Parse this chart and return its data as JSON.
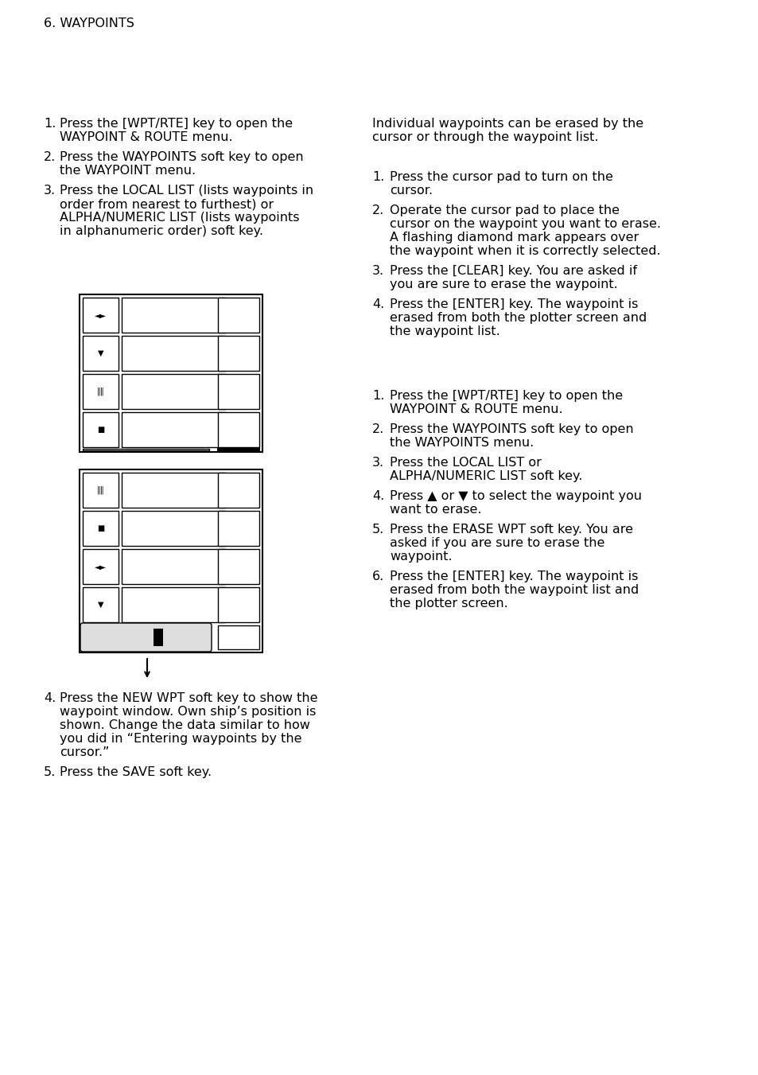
{
  "bg_color": "#ffffff",
  "text_color": "#000000",
  "header": "6. WAYPOINTS",
  "left_list1": [
    [
      "1.",
      "Press the [WPT/RTE] key to open the\nWAYPOINT & ROUTE menu."
    ],
    [
      "2.",
      "Press the WAYPOINTS soft key to open\nthe WAYPOINT menu."
    ],
    [
      "3.",
      "Press the LOCAL LIST (lists waypoints in\norder from nearest to furthest) or\nALPHA/NUMERIC LIST (lists waypoints\nin alphanumeric order) soft key."
    ]
  ],
  "right_intro": "Individual waypoints can be erased by the\ncursor or through the waypoint list.",
  "right_list1": [
    [
      "1.",
      "Press the cursor pad to turn on the\ncursor."
    ],
    [
      "2.",
      "Operate the cursor pad to place the\ncursor on the waypoint you want to erase.\nA flashing diamond mark appears over\nthe waypoint when it is correctly selected."
    ],
    [
      "3.",
      "Press the [CLEAR] key. You are asked if\nyou are sure to erase the waypoint."
    ],
    [
      "4.",
      "Press the [ENTER] key. The waypoint is\nerased from both the plotter screen and\nthe waypoint list."
    ]
  ],
  "right_list2": [
    [
      "1.",
      "Press the [WPT/RTE] key to open the\nWAYPOINT & ROUTE menu."
    ],
    [
      "2.",
      "Press the WAYPOINTS soft key to open\nthe WAYPOINTS menu."
    ],
    [
      "3.",
      "Press the LOCAL LIST or\nALPHA/NUMERIC LIST soft key."
    ],
    [
      "4.",
      "Press ▲ or ▼ to select the waypoint you\nwant to erase."
    ],
    [
      "5.",
      "Press the ERASE WPT soft key. You are\nasked if you are sure to erase the\nwaypoint."
    ],
    [
      "6.",
      "Press the [ENTER] key. The waypoint is\nerased from both the waypoint list and\nthe plotter screen."
    ]
  ],
  "left_list2": [
    [
      "4.",
      "Press the NEW WPT soft key to show the\nwaypoint window. Own ship’s position is\nshown. Change the data similar to how\nyou did in “Entering waypoints by the\ncursor.”"
    ],
    [
      "5.",
      "Press the SAVE soft key."
    ]
  ]
}
